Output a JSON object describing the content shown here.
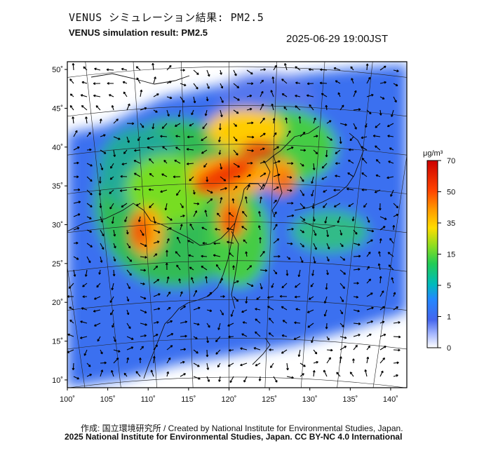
{
  "header": {
    "title_ja": "VENUS シミュレーション結果: PM2.5",
    "title_en": "VENUS simulation result: PM2.5",
    "timestamp": "2025-06-29 19:00JST"
  },
  "map": {
    "lat_labels": [
      "50˚",
      "45˚",
      "40˚",
      "35˚",
      "30˚",
      "25˚",
      "20˚",
      "15˚",
      "10˚"
    ],
    "lon_labels": [
      "100˚",
      "105˚",
      "110˚",
      "115˚",
      "120˚",
      "125˚",
      "130˚",
      "135˚",
      "140˚"
    ],
    "lat_values": [
      50,
      45,
      40,
      35,
      30,
      25,
      20,
      15,
      10
    ],
    "lon_values": [
      100,
      105,
      110,
      115,
      120,
      125,
      130,
      135,
      140
    ],
    "lon_range": [
      100,
      142
    ],
    "lat_range": [
      9,
      51
    ]
  },
  "colorbar": {
    "unit": "μg/m³",
    "labels": [
      "70",
      "50",
      "35",
      "15",
      "5",
      "1",
      "0"
    ],
    "colors": [
      "#cc0000",
      "#ff6600",
      "#ffcc00",
      "#66dd22",
      "#00cc88",
      "#2288ff",
      "#4466ee",
      "#aabbff",
      "#ffffff"
    ]
  },
  "footer": {
    "credit_ja_en": "作成: 国立環境研究所 / Created by National Institute for Environmental Studies, Japan.",
    "license": "2025 National Institute for Environmental Studies, Japan. CC BY-NC 4.0 International"
  }
}
